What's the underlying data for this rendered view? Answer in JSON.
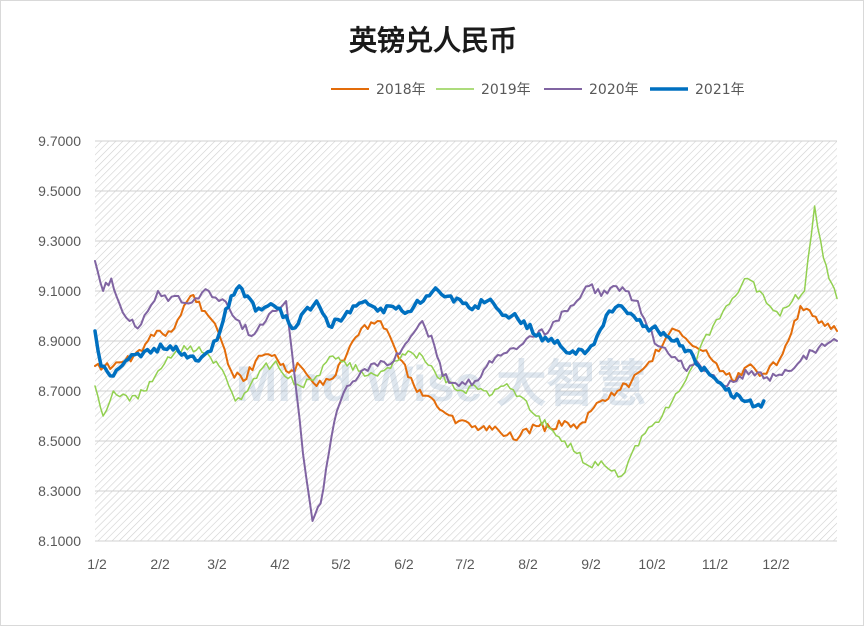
{
  "chart_data": {
    "type": "line",
    "title": "英镑兑人民币",
    "xlabel": "",
    "ylabel": "",
    "x_ticks": [
      "1/2",
      "2/2",
      "3/2",
      "4/2",
      "5/2",
      "6/2",
      "7/2",
      "8/2",
      "9/2",
      "10/2",
      "11/2",
      "12/2"
    ],
    "y_ticks": [
      "9.7000",
      "9.5000",
      "9.3000",
      "9.1000",
      "8.9000",
      "8.7000",
      "8.5000",
      "8.3000",
      "8.1000"
    ],
    "ylim": [
      8.1,
      9.7
    ],
    "xlim": [
      1,
      366
    ],
    "grid": "horizontal",
    "legend_position": "top",
    "watermark": "Mind Wise 大智慧",
    "series": [
      {
        "name": "2018年",
        "color": "#E36C0A",
        "width": 2,
        "points": [
          [
            1,
            8.8
          ],
          [
            10,
            8.8
          ],
          [
            20,
            8.84
          ],
          [
            30,
            8.92
          ],
          [
            40,
            8.95
          ],
          [
            48,
            9.08
          ],
          [
            55,
            9.02
          ],
          [
            60,
            8.97
          ],
          [
            68,
            8.78
          ],
          [
            74,
            8.74
          ],
          [
            80,
            8.82
          ],
          [
            88,
            8.84
          ],
          [
            95,
            8.78
          ],
          [
            102,
            8.8
          ],
          [
            110,
            8.72
          ],
          [
            118,
            8.75
          ],
          [
            125,
            8.85
          ],
          [
            132,
            8.95
          ],
          [
            140,
            8.98
          ],
          [
            146,
            8.92
          ],
          [
            152,
            8.82
          ],
          [
            158,
            8.72
          ],
          [
            165,
            8.68
          ],
          [
            172,
            8.62
          ],
          [
            180,
            8.58
          ],
          [
            188,
            8.56
          ],
          [
            195,
            8.56
          ],
          [
            202,
            8.52
          ],
          [
            210,
            8.52
          ],
          [
            218,
            8.56
          ],
          [
            225,
            8.55
          ],
          [
            232,
            8.58
          ],
          [
            238,
            8.55
          ],
          [
            245,
            8.62
          ],
          [
            252,
            8.66
          ],
          [
            258,
            8.7
          ],
          [
            265,
            8.74
          ],
          [
            272,
            8.8
          ],
          [
            280,
            8.88
          ],
          [
            285,
            8.95
          ],
          [
            290,
            8.92
          ],
          [
            295,
            8.88
          ],
          [
            300,
            8.86
          ],
          [
            305,
            8.82
          ],
          [
            310,
            8.78
          ],
          [
            316,
            8.74
          ],
          [
            322,
            8.8
          ],
          [
            328,
            8.76
          ],
          [
            333,
            8.8
          ],
          [
            338,
            8.83
          ],
          [
            342,
            8.9
          ],
          [
            348,
            9.04
          ],
          [
            354,
            9.0
          ],
          [
            360,
            8.96
          ],
          [
            366,
            8.94
          ]
        ]
      },
      {
        "name": "2019年",
        "color": "#92D050",
        "width": 1.5,
        "points": [
          [
            1,
            8.72
          ],
          [
            5,
            8.6
          ],
          [
            10,
            8.7
          ],
          [
            18,
            8.66
          ],
          [
            25,
            8.7
          ],
          [
            32,
            8.78
          ],
          [
            40,
            8.85
          ],
          [
            48,
            8.88
          ],
          [
            55,
            8.85
          ],
          [
            62,
            8.8
          ],
          [
            70,
            8.66
          ],
          [
            76,
            8.7
          ],
          [
            82,
            8.78
          ],
          [
            90,
            8.82
          ],
          [
            96,
            8.75
          ],
          [
            102,
            8.72
          ],
          [
            110,
            8.76
          ],
          [
            118,
            8.84
          ],
          [
            125,
            8.8
          ],
          [
            132,
            8.78
          ],
          [
            140,
            8.76
          ],
          [
            148,
            8.82
          ],
          [
            155,
            8.86
          ],
          [
            162,
            8.84
          ],
          [
            168,
            8.78
          ],
          [
            175,
            8.74
          ],
          [
            182,
            8.7
          ],
          [
            188,
            8.72
          ],
          [
            195,
            8.68
          ],
          [
            202,
            8.72
          ],
          [
            210,
            8.68
          ],
          [
            218,
            8.6
          ],
          [
            225,
            8.55
          ],
          [
            232,
            8.5
          ],
          [
            238,
            8.45
          ],
          [
            244,
            8.4
          ],
          [
            250,
            8.42
          ],
          [
            255,
            8.38
          ],
          [
            260,
            8.36
          ],
          [
            265,
            8.45
          ],
          [
            270,
            8.52
          ],
          [
            275,
            8.56
          ],
          [
            280,
            8.6
          ],
          [
            285,
            8.66
          ],
          [
            290,
            8.72
          ],
          [
            295,
            8.8
          ],
          [
            300,
            8.9
          ],
          [
            305,
            8.96
          ],
          [
            310,
            9.02
          ],
          [
            316,
            9.08
          ],
          [
            322,
            9.15
          ],
          [
            328,
            9.1
          ],
          [
            333,
            9.04
          ],
          [
            338,
            9.0
          ],
          [
            344,
            9.06
          ],
          [
            350,
            9.1
          ],
          [
            355,
            9.44
          ],
          [
            358,
            9.3
          ],
          [
            362,
            9.15
          ],
          [
            366,
            9.07
          ]
        ]
      },
      {
        "name": "2020年",
        "color": "#8064A2",
        "width": 2,
        "points": [
          [
            1,
            9.22
          ],
          [
            5,
            9.1
          ],
          [
            9,
            9.15
          ],
          [
            13,
            9.05
          ],
          [
            18,
            8.98
          ],
          [
            22,
            8.95
          ],
          [
            27,
            9.02
          ],
          [
            32,
            9.1
          ],
          [
            37,
            9.06
          ],
          [
            42,
            9.08
          ],
          [
            47,
            9.05
          ],
          [
            52,
            9.07
          ],
          [
            57,
            9.1
          ],
          [
            62,
            9.06
          ],
          [
            67,
            9.03
          ],
          [
            72,
            8.98
          ],
          [
            78,
            8.92
          ],
          [
            85,
            8.98
          ],
          [
            90,
            9.02
          ],
          [
            95,
            9.06
          ],
          [
            100,
            8.7
          ],
          [
            105,
            8.35
          ],
          [
            108,
            8.18
          ],
          [
            112,
            8.25
          ],
          [
            116,
            8.45
          ],
          [
            120,
            8.62
          ],
          [
            125,
            8.72
          ],
          [
            132,
            8.78
          ],
          [
            140,
            8.8
          ],
          [
            148,
            8.82
          ],
          [
            155,
            8.9
          ],
          [
            162,
            8.98
          ],
          [
            168,
            8.88
          ],
          [
            172,
            8.76
          ],
          [
            180,
            8.72
          ],
          [
            188,
            8.74
          ],
          [
            195,
            8.82
          ],
          [
            202,
            8.85
          ],
          [
            210,
            8.88
          ],
          [
            218,
            8.92
          ],
          [
            225,
            8.95
          ],
          [
            232,
            9.02
          ],
          [
            238,
            9.06
          ],
          [
            244,
            9.12
          ],
          [
            250,
            9.08
          ],
          [
            256,
            9.12
          ],
          [
            262,
            9.1
          ],
          [
            268,
            9.06
          ],
          [
            273,
            8.95
          ],
          [
            278,
            8.88
          ],
          [
            283,
            8.85
          ],
          [
            288,
            8.82
          ],
          [
            292,
            8.78
          ],
          [
            297,
            8.82
          ],
          [
            302,
            8.78
          ],
          [
            307,
            8.74
          ],
          [
            312,
            8.72
          ],
          [
            318,
            8.76
          ],
          [
            324,
            8.78
          ],
          [
            330,
            8.75
          ],
          [
            336,
            8.76
          ],
          [
            342,
            8.78
          ],
          [
            348,
            8.82
          ],
          [
            354,
            8.86
          ],
          [
            360,
            8.88
          ],
          [
            366,
            8.9
          ]
        ]
      },
      {
        "name": "2021年",
        "color": "#0070C0",
        "width": 3.5,
        "points": [
          [
            1,
            8.94
          ],
          [
            4,
            8.8
          ],
          [
            10,
            8.76
          ],
          [
            16,
            8.82
          ],
          [
            22,
            8.85
          ],
          [
            30,
            8.87
          ],
          [
            38,
            8.88
          ],
          [
            45,
            8.85
          ],
          [
            52,
            8.82
          ],
          [
            58,
            8.86
          ],
          [
            64,
            8.98
          ],
          [
            68,
            9.08
          ],
          [
            72,
            9.12
          ],
          [
            76,
            9.08
          ],
          [
            80,
            9.02
          ],
          [
            86,
            9.04
          ],
          [
            92,
            9.03
          ],
          [
            98,
            8.95
          ],
          [
            104,
            9.02
          ],
          [
            110,
            9.06
          ],
          [
            116,
            8.96
          ],
          [
            122,
            8.98
          ],
          [
            128,
            9.04
          ],
          [
            134,
            9.06
          ],
          [
            140,
            9.02
          ],
          [
            146,
            9.04
          ],
          [
            152,
            9.02
          ],
          [
            158,
            9.04
          ],
          [
            164,
            9.08
          ],
          [
            170,
            9.1
          ],
          [
            176,
            9.08
          ],
          [
            182,
            9.05
          ],
          [
            188,
            9.04
          ],
          [
            194,
            9.06
          ],
          [
            200,
            9.02
          ],
          [
            206,
            9.0
          ],
          [
            212,
            8.98
          ],
          [
            218,
            8.92
          ],
          [
            224,
            8.9
          ],
          [
            230,
            8.88
          ],
          [
            236,
            8.86
          ],
          [
            242,
            8.85
          ],
          [
            248,
            8.92
          ],
          [
            254,
            9.02
          ],
          [
            260,
            9.04
          ],
          [
            266,
            9.0
          ],
          [
            272,
            8.96
          ],
          [
            278,
            8.94
          ],
          [
            282,
            8.92
          ],
          [
            286,
            8.9
          ],
          [
            290,
            8.88
          ],
          [
            294,
            8.86
          ],
          [
            298,
            8.8
          ],
          [
            302,
            8.78
          ],
          [
            306,
            8.75
          ],
          [
            310,
            8.72
          ],
          [
            314,
            8.68
          ],
          [
            318,
            8.68
          ],
          [
            322,
            8.66
          ],
          [
            326,
            8.64
          ],
          [
            330,
            8.66
          ]
        ]
      }
    ]
  }
}
